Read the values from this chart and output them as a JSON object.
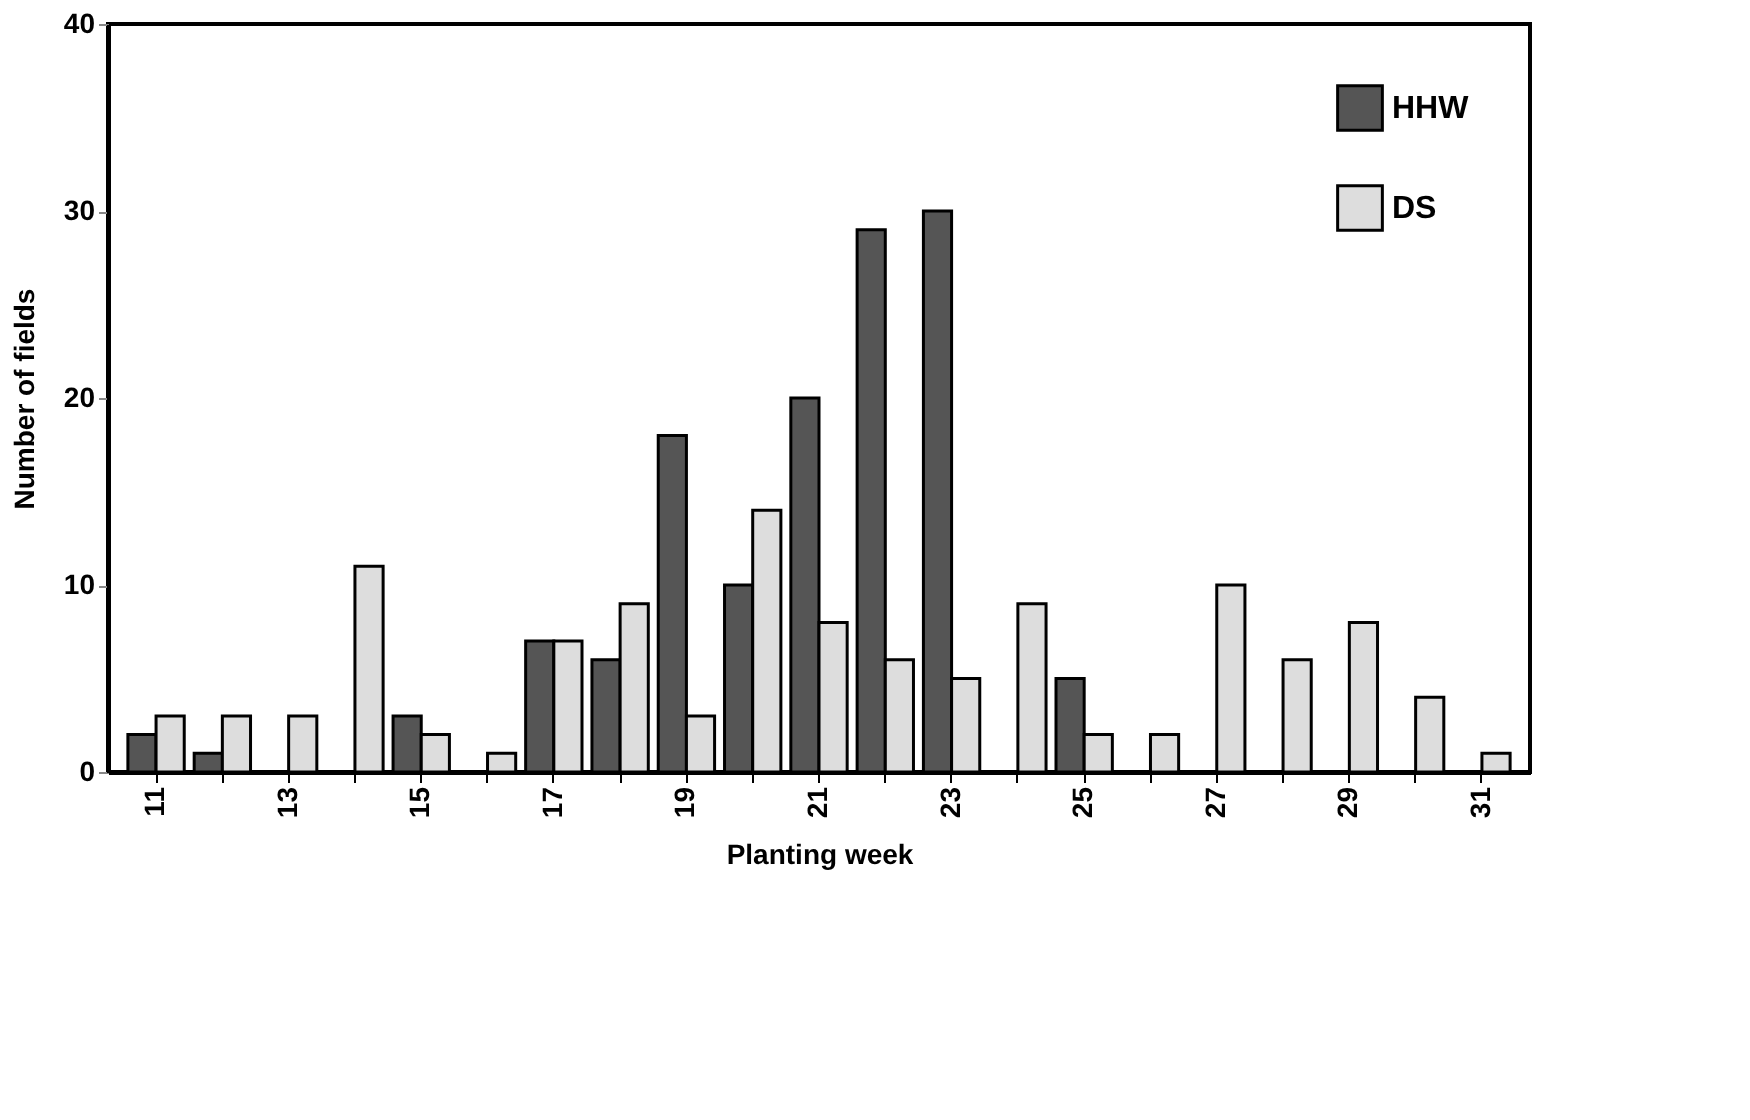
{
  "chart_data": {
    "type": "bar",
    "xlabel": "Planting week",
    "ylabel": "Number of fields",
    "categories": [
      "11",
      null,
      "13",
      null,
      "15",
      null,
      "17",
      null,
      "19",
      null,
      "21",
      null,
      "23",
      null,
      "25",
      null,
      "27",
      null,
      "29",
      null,
      "31"
    ],
    "series": [
      {
        "name": "HHW",
        "color": "#555555",
        "values": [
          2,
          1,
          null,
          null,
          3,
          null,
          7,
          6,
          18,
          10,
          20,
          29,
          30,
          null,
          5,
          null,
          null,
          null,
          null,
          null,
          null
        ]
      },
      {
        "name": "DS",
        "color": "#dddddd",
        "values": [
          3,
          3,
          3,
          11,
          2,
          1,
          7,
          9,
          3,
          14,
          8,
          6,
          5,
          9,
          2,
          2,
          10,
          6,
          8,
          4,
          1
        ]
      }
    ],
    "ylim": [
      0,
      40
    ],
    "yticks": [
      0,
      10,
      20,
      30,
      40
    ],
    "grid": false,
    "legend": "top right"
  }
}
